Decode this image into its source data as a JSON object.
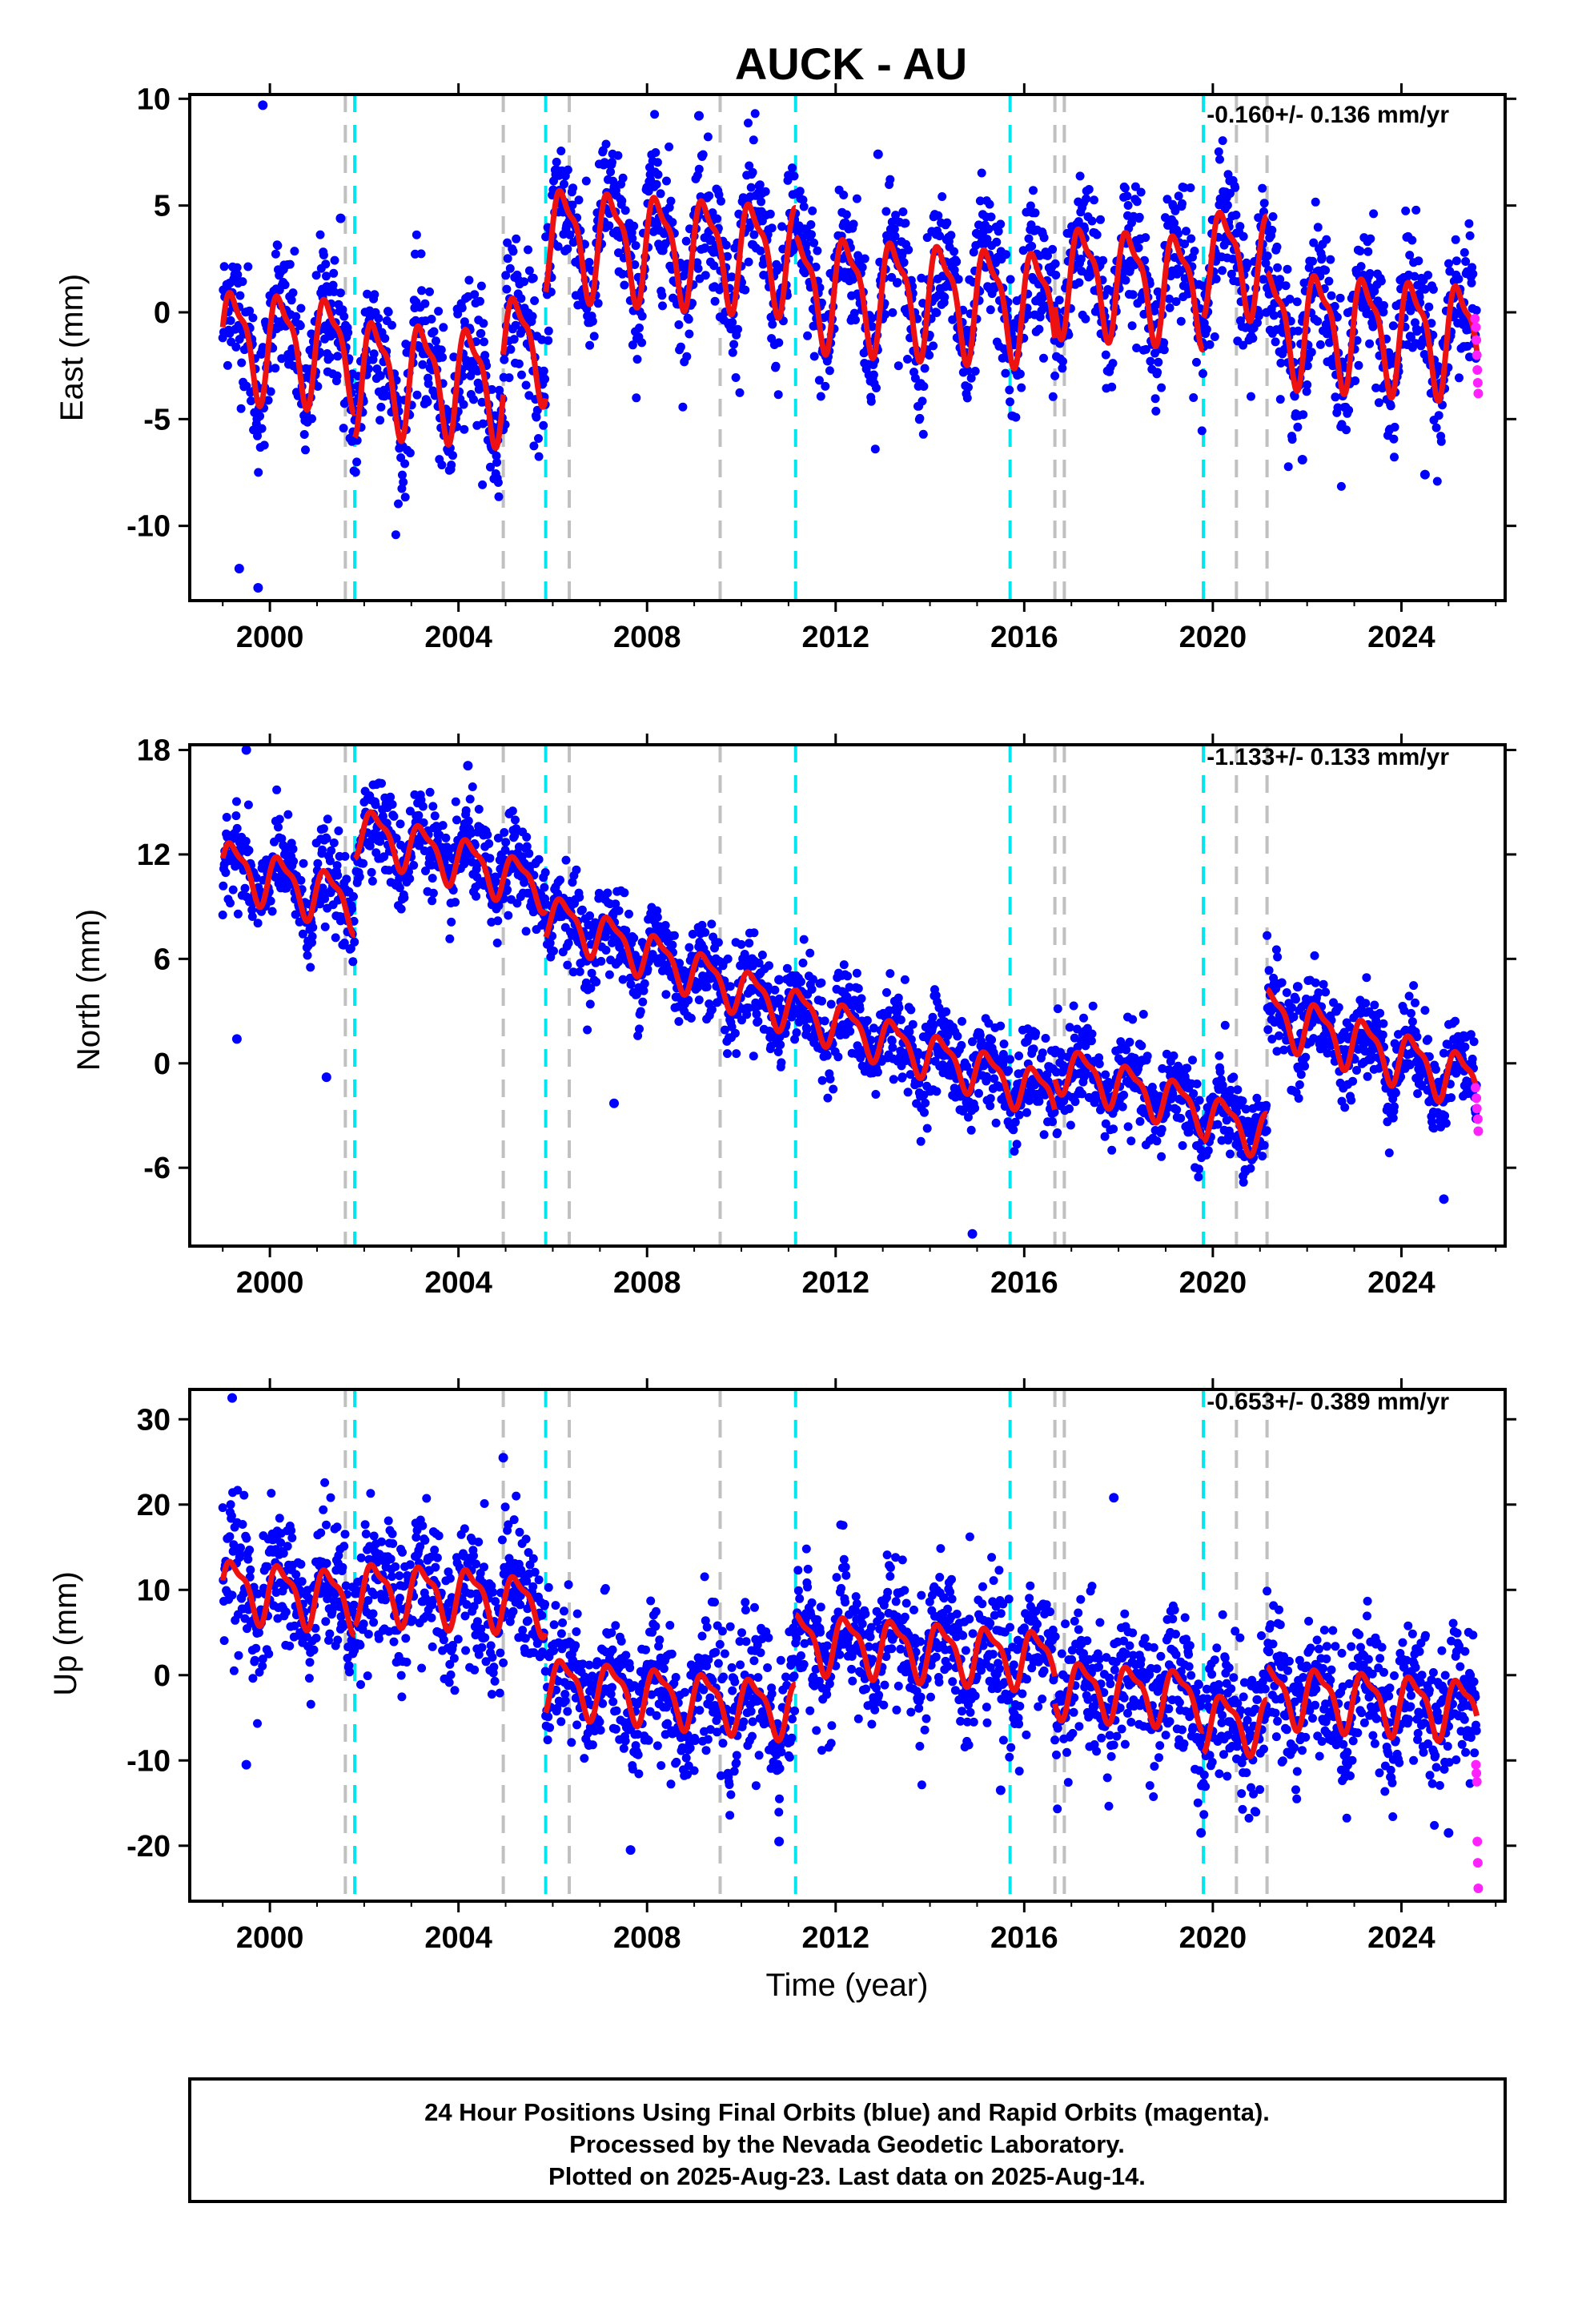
{
  "chart_data": {
    "title": "AUCK - AU",
    "type": "scatter",
    "xlabel": "Time (year)",
    "xlim": [
      1998.3,
      2026.2
    ],
    "x_ticks": [
      2000,
      2004,
      2008,
      2012,
      2016,
      2020,
      2024
    ],
    "x_tick_labels": [
      "2000",
      "2004",
      "2008",
      "2012",
      "2016",
      "2020",
      "2024"
    ],
    "colors": {
      "final": "#0000ff",
      "rapid": "#ff22ff",
      "model": "#ee1111",
      "equipment_change": "#00e5ee",
      "other_event": "#c0c0c0"
    },
    "equipment_changes": [
      2001.8,
      2005.85,
      2011.15,
      2015.7,
      2019.8
    ],
    "other_events": [
      2001.6,
      2004.95,
      2006.35,
      2009.55,
      2016.65,
      2016.85,
      2020.5,
      2021.15
    ],
    "panels": [
      {
        "name": "east",
        "ylabel": "East (mm)",
        "ylim": [
          -13.5,
          10.2
        ],
        "y_ticks": [
          10,
          5,
          0,
          -5,
          -10
        ],
        "y_tick_labels": [
          "10",
          "5",
          "0",
          "-5",
          "-10"
        ],
        "rate": "-0.160+/- 0.136 mm/yr",
        "segments": [
          {
            "t0": 1999.0,
            "t1": 2001.8,
            "offset": -1.5,
            "rate": -0.16,
            "amp": 2.3
          },
          {
            "t0": 2001.8,
            "t1": 2004.95,
            "offset": -3.0,
            "rate": -0.16,
            "amp": 2.4
          },
          {
            "t0": 2004.95,
            "t1": 2005.85,
            "offset": -1.5,
            "rate": -0.16,
            "amp": 2.2
          },
          {
            "t0": 2005.85,
            "t1": 2011.15,
            "offset": 3.1,
            "rate": -0.16,
            "amp": 2.3
          },
          {
            "t0": 2011.15,
            "t1": 2016.65,
            "offset": 0.8,
            "rate": -0.16,
            "amp": 2.4
          },
          {
            "t0": 2016.65,
            "t1": 2019.8,
            "offset": 1.5,
            "rate": -0.16,
            "amp": 2.3
          },
          {
            "t0": 2019.8,
            "t1": 2021.15,
            "offset": 2.5,
            "rate": -0.16,
            "amp": 2.2
          },
          {
            "t0": 2021.15,
            "t1": 2025.6,
            "offset": -0.8,
            "rate": -0.16,
            "amp": 2.4
          }
        ],
        "noise": 1.6,
        "outliers": [
          [
            1999.85,
            9.7
          ],
          [
            1999.35,
            -12.0
          ],
          [
            1999.75,
            -12.9
          ],
          [
            2001.5,
            4.4
          ],
          [
            2009.1,
            9.2
          ],
          [
            2012.9,
            7.4
          ],
          [
            2021.9,
            -6.9
          ],
          [
            2024.5,
            -7.6
          ]
        ],
        "rapid_points": [
          [
            2025.56,
            -0.3
          ],
          [
            2025.58,
            -0.7
          ],
          [
            2025.59,
            -1.3
          ],
          [
            2025.6,
            -2.0
          ],
          [
            2025.61,
            -2.7
          ],
          [
            2025.62,
            -3.3
          ],
          [
            2025.63,
            -3.8
          ]
        ]
      },
      {
        "name": "north",
        "ylabel": "North (mm)",
        "ylim": [
          -10.5,
          18.3
        ],
        "y_ticks": [
          18,
          12,
          6,
          0,
          -6
        ],
        "y_tick_labels": [
          "18",
          "12",
          "6",
          "0",
          "-6"
        ],
        "rate": "-1.133+/- 0.133 mm/yr",
        "segments": [
          {
            "t0": 1999.0,
            "t1": 2001.8,
            "offset": 10.3,
            "rate": -0.8,
            "amp": 1.4
          },
          {
            "t0": 2001.8,
            "t1": 2004.95,
            "offset": 12.2,
            "rate": -0.8,
            "amp": 1.3
          },
          {
            "t0": 2004.95,
            "t1": 2005.85,
            "offset": 10.5,
            "rate": -0.8,
            "amp": 1.2
          },
          {
            "t0": 2005.85,
            "t1": 2011.15,
            "offset": 5.8,
            "rate": -1.05,
            "amp": 1.2
          },
          {
            "t0": 2011.15,
            "t1": 2016.65,
            "offset": 0.6,
            "rate": -0.9,
            "amp": 1.2
          },
          {
            "t0": 2016.65,
            "t1": 2019.8,
            "offset": -1.4,
            "rate": -0.8,
            "amp": 1.2
          },
          {
            "t0": 2019.8,
            "t1": 2021.15,
            "offset": -3.5,
            "rate": -0.8,
            "amp": 1.2
          },
          {
            "t0": 2021.15,
            "t1": 2025.6,
            "offset": 0.9,
            "rate": -0.9,
            "amp": 1.4
          }
        ],
        "noise": 1.3,
        "outliers": [
          [
            1999.5,
            18.0
          ],
          [
            1999.3,
            1.4
          ],
          [
            2001.2,
            -0.8
          ],
          [
            2004.2,
            17.1
          ],
          [
            2007.3,
            -2.3
          ],
          [
            2010.8,
            4.8
          ],
          [
            2014.9,
            -9.8
          ],
          [
            2021.8,
            4.4
          ],
          [
            2024.9,
            -7.8
          ]
        ],
        "rapid_points": [
          [
            2025.57,
            -1.4
          ],
          [
            2025.59,
            -2.0
          ],
          [
            2025.6,
            -2.6
          ],
          [
            2025.62,
            -3.2
          ],
          [
            2025.63,
            -3.9
          ]
        ]
      },
      {
        "name": "up",
        "ylabel": "Up (mm)",
        "ylim": [
          -26.5,
          33.5
        ],
        "y_ticks": [
          30,
          20,
          10,
          0,
          -10,
          -20
        ],
        "y_tick_labels": [
          "30",
          "20",
          "10",
          "0",
          "-10",
          "-20"
        ],
        "rate": "-0.653+/- 0.389 mm/yr",
        "segments": [
          {
            "t0": 1999.0,
            "t1": 2001.8,
            "offset": 9.6,
            "rate": -0.5,
            "amp": 3.2
          },
          {
            "t0": 2001.8,
            "t1": 2004.95,
            "offset": 9.5,
            "rate": -0.3,
            "amp": 3.2
          },
          {
            "t0": 2004.95,
            "t1": 2005.85,
            "offset": 8.5,
            "rate": -0.5,
            "amp": 3.0
          },
          {
            "t0": 2005.85,
            "t1": 2011.15,
            "offset": -2.5,
            "rate": -0.55,
            "amp": 3.0
          },
          {
            "t0": 2011.15,
            "t1": 2016.65,
            "offset": 3.0,
            "rate": -0.4,
            "amp": 3.1
          },
          {
            "t0": 2016.65,
            "t1": 2019.8,
            "offset": -2.0,
            "rate": -0.4,
            "amp": 3.0
          },
          {
            "t0": 2019.8,
            "t1": 2021.15,
            "offset": -5.5,
            "rate": -0.4,
            "amp": 3.0
          },
          {
            "t0": 2021.15,
            "t1": 2025.6,
            "offset": -3.0,
            "rate": -0.4,
            "amp": 3.2
          }
        ],
        "noise": 4.0,
        "outliers": [
          [
            1999.2,
            32.5
          ],
          [
            1999.5,
            -10.5
          ],
          [
            2004.95,
            25.5
          ],
          [
            2007.65,
            -20.5
          ],
          [
            2010.8,
            -19.5
          ],
          [
            2017.9,
            20.8
          ],
          [
            2015.5,
            -13.5
          ],
          [
            2019.75,
            -18.5
          ],
          [
            2025.0,
            -18.5
          ]
        ],
        "rapid_points": [
          [
            2025.58,
            -10.5
          ],
          [
            2025.59,
            -11.5
          ],
          [
            2025.6,
            -12.5
          ],
          [
            2025.61,
            -19.5
          ],
          [
            2025.62,
            -22.0
          ],
          [
            2025.63,
            -25.0
          ]
        ]
      }
    ]
  },
  "footer": {
    "line1": "24 Hour Positions Using Final Orbits (blue) and Rapid Orbits (magenta).",
    "line2": "Processed by the Nevada Geodetic Laboratory.",
    "line3": "Plotted on 2025-Aug-23. Last data on 2025-Aug-14."
  }
}
